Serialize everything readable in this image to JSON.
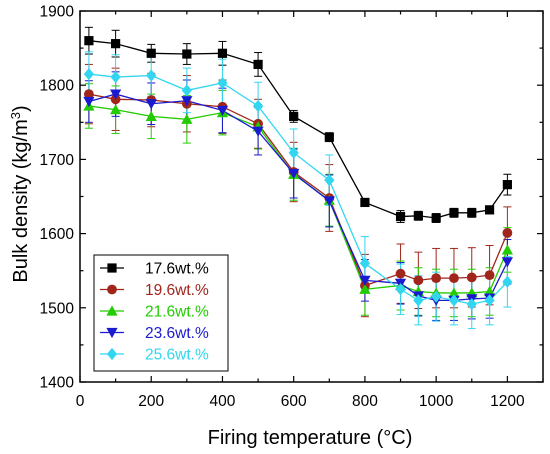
{
  "chart_data": {
    "type": "line",
    "title": "",
    "xlabel": "Firing temperature (°C)",
    "ylabel": "Bulk density (kg/m³)",
    "ylabel_parts": {
      "main": "Bulk density (kg/m",
      "sup": "3",
      "end": ")"
    },
    "xlim": [
      0,
      1300
    ],
    "ylim": [
      1400,
      1900
    ],
    "xticks": [
      0,
      200,
      400,
      600,
      800,
      1000,
      1200
    ],
    "yticks": [
      1400,
      1500,
      1600,
      1700,
      1800,
      1900
    ],
    "x": [
      25,
      100,
      200,
      300,
      400,
      500,
      600,
      700,
      800,
      900,
      950,
      1000,
      1050,
      1100,
      1150,
      1200
    ],
    "legend_position": "bottom-left",
    "grid": false,
    "series": [
      {
        "name": "17.6wt.%",
        "color": "#000000",
        "marker": "square",
        "values": [
          1860,
          1856,
          1843,
          1842,
          1843,
          1828,
          1758,
          1730,
          1642,
          1623,
          1624,
          1621,
          1628,
          1628,
          1632,
          1666
        ],
        "errors": [
          18,
          18,
          12,
          14,
          16,
          16,
          8,
          6,
          3,
          8,
          6,
          6,
          6,
          6,
          5,
          14
        ]
      },
      {
        "name": "19.6wt.%",
        "color": "#a0261c",
        "marker": "circle",
        "values": [
          1788,
          1781,
          1780,
          1775,
          1771,
          1748,
          1683,
          1648,
          1530,
          1546,
          1537,
          1540,
          1540,
          1541,
          1544,
          1601
        ],
        "errors": [
          40,
          42,
          36,
          38,
          36,
          33,
          40,
          45,
          42,
          40,
          38,
          40,
          40,
          40,
          40,
          35
        ]
      },
      {
        "name": "21.6wt.%",
        "color": "#22cc00",
        "marker": "triangle-up",
        "values": [
          1772,
          1767,
          1758,
          1754,
          1763,
          1744,
          1680,
          1645,
          1525,
          1530,
          1522,
          1520,
          1520,
          1520,
          1522,
          1578
        ],
        "errors": [
          30,
          32,
          30,
          32,
          30,
          30,
          35,
          35,
          35,
          33,
          32,
          32,
          32,
          32,
          32,
          30
        ]
      },
      {
        "name": "23.6wt.%",
        "color": "#1a1ad0",
        "marker": "triangle-down",
        "values": [
          1778,
          1788,
          1775,
          1779,
          1766,
          1738,
          1681,
          1644,
          1537,
          1533,
          1516,
          1510,
          1510,
          1512,
          1513,
          1562
        ],
        "errors": [
          28,
          30,
          28,
          28,
          30,
          32,
          33,
          35,
          28,
          28,
          27,
          27,
          27,
          27,
          27,
          30
        ]
      },
      {
        "name": "25.6wt.%",
        "color": "#33d6f0",
        "marker": "diamond",
        "values": [
          1815,
          1811,
          1813,
          1793,
          1803,
          1772,
          1709,
          1672,
          1560,
          1525,
          1510,
          1515,
          1510,
          1505,
          1510,
          1535
        ],
        "errors": [
          30,
          30,
          28,
          30,
          32,
          32,
          32,
          34,
          36,
          34,
          33,
          33,
          33,
          33,
          33,
          34
        ]
      }
    ]
  }
}
